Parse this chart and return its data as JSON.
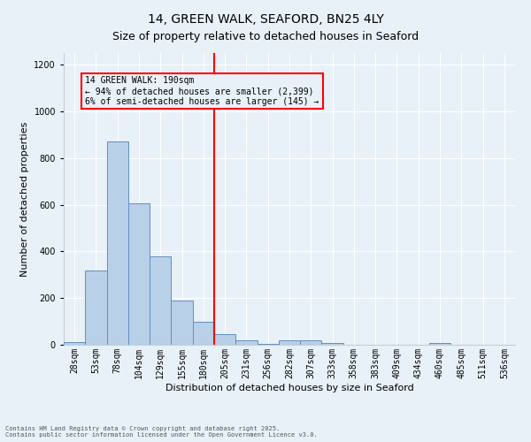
{
  "title": "14, GREEN WALK, SEAFORD, BN25 4LY",
  "subtitle": "Size of property relative to detached houses in Seaford",
  "xlabel": "Distribution of detached houses by size in Seaford",
  "ylabel": "Number of detached properties",
  "bar_labels": [
    "28sqm",
    "53sqm",
    "78sqm",
    "104sqm",
    "129sqm",
    "155sqm",
    "180sqm",
    "205sqm",
    "231sqm",
    "256sqm",
    "282sqm",
    "307sqm",
    "333sqm",
    "358sqm",
    "383sqm",
    "409sqm",
    "434sqm",
    "460sqm",
    "485sqm",
    "511sqm",
    "536sqm"
  ],
  "bar_values": [
    12,
    320,
    870,
    605,
    380,
    190,
    100,
    45,
    20,
    5,
    20,
    18,
    8,
    0,
    0,
    0,
    0,
    8,
    0,
    0,
    0
  ],
  "bar_color": "#b8d0e8",
  "bar_edge_color": "#6090c0",
  "vline_color": "red",
  "vline_pos": 6.5,
  "annotation_title": "14 GREEN WALK: 190sqm",
  "annotation_line1": "← 94% of detached houses are smaller (2,399)",
  "annotation_line2": "6% of semi-detached houses are larger (145) →",
  "annotation_box_color": "red",
  "ylim": [
    0,
    1250
  ],
  "yticks": [
    0,
    200,
    400,
    600,
    800,
    1000,
    1200
  ],
  "footer1": "Contains HM Land Registry data © Crown copyright and database right 2025.",
  "footer2": "Contains public sector information licensed under the Open Government Licence v3.0.",
  "bg_color": "#e8f0f8",
  "title_fontsize": 10,
  "subtitle_fontsize": 9,
  "xlabel_fontsize": 8,
  "ylabel_fontsize": 8,
  "tick_fontsize": 7,
  "annotation_fontsize": 7,
  "footer_fontsize": 5
}
